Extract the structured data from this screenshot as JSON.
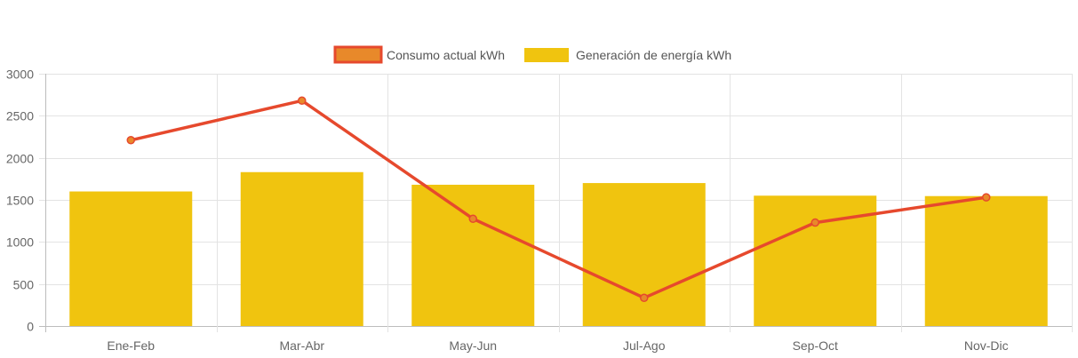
{
  "chart_data": {
    "type": "bar",
    "categories": [
      "Ene-Feb",
      "Mar-Abr",
      "May-Jun",
      "Jul-Ago",
      "Sep-Oct",
      "Nov-Dic"
    ],
    "ylim": [
      0,
      3000
    ],
    "yticks": [
      0,
      500,
      1000,
      1500,
      2000,
      2500,
      3000
    ],
    "grid": true,
    "legend_position": "top-center",
    "series": [
      {
        "name": "Consumo actual kWh",
        "type": "line",
        "values": [
          2210,
          2680,
          1275,
          335,
          1230,
          1530
        ],
        "color": "#e6492d",
        "fill_color": "#e8892a"
      },
      {
        "name": "Generación de energía kWh",
        "type": "bar",
        "values": [
          1600,
          1830,
          1680,
          1700,
          1550,
          1545
        ],
        "color": "#f0c40f"
      }
    ]
  },
  "legend": {
    "items": [
      {
        "label": "Consumo actual kWh"
      },
      {
        "label": "Generación de energía kWh"
      }
    ]
  }
}
